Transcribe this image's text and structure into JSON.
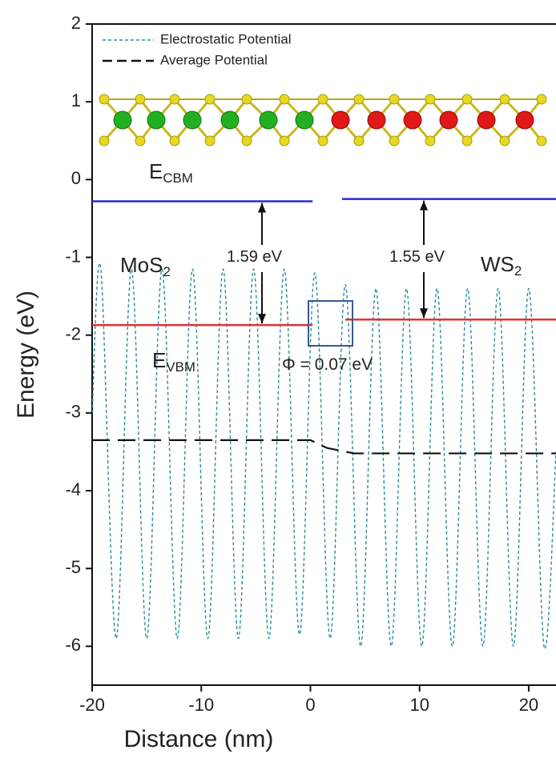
{
  "chart_data": {
    "type": "line",
    "xlabel": "Distance (nm)",
    "ylabel": "Energy (eV)",
    "xlim": [
      -20,
      22.5
    ],
    "ylim": [
      -6.5,
      2
    ],
    "xticks": [
      -20,
      -10,
      0,
      10,
      20
    ],
    "yticks": [
      -6,
      -5,
      -4,
      -3,
      -2,
      -1,
      0,
      1,
      2
    ],
    "legend": "upper left",
    "series": [
      {
        "name": "Electrostatic Potential",
        "color": "#2a8c9c",
        "dash": "dashed",
        "x": [
          -20,
          -19.2,
          -17.8,
          -16.4,
          -15.0,
          -13.6,
          -12.2,
          -10.8,
          -9.4,
          -8.0,
          -6.6,
          -5.2,
          -3.8,
          -2.4,
          -1.0,
          0.4,
          1.8,
          3.2,
          4.6,
          6.0,
          7.4,
          8.8,
          10.2,
          11.6,
          13.0,
          14.4,
          15.8,
          17.2,
          18.6,
          20.0,
          21.4,
          22.5
        ],
        "values": [
          -3.0,
          -1.15,
          -5.9,
          -1.15,
          -5.9,
          -1.15,
          -5.9,
          -1.15,
          -5.9,
          -1.15,
          -5.9,
          -1.15,
          -5.9,
          -1.15,
          -5.85,
          -1.2,
          -5.9,
          -1.35,
          -6.0,
          -1.4,
          -6.0,
          -1.4,
          -6.0,
          -1.4,
          -6.0,
          -1.4,
          -6.0,
          -1.4,
          -6.0,
          -1.4,
          -6.0,
          -3.5
        ]
      },
      {
        "name": "Average Potential",
        "color": "#111111",
        "dash": "long-dashed",
        "x": [
          -20,
          0,
          1.5,
          4,
          22.5
        ],
        "values": [
          -3.35,
          -3.35,
          -3.45,
          -3.52,
          -3.52
        ]
      }
    ],
    "bands": [
      {
        "x": [
          -20,
          0.2
        ],
        "y": -0.28,
        "color": "#2b2bd0"
      },
      {
        "x": [
          2.9,
          22.5
        ],
        "y": -0.25,
        "color": "#2b2bd0"
      },
      {
        "x": [
          -20,
          0.2
        ],
        "y": -1.87,
        "color": "#e53030"
      },
      {
        "x": [
          3.2,
          22.5
        ],
        "y": -1.8,
        "color": "#e53030"
      }
    ],
    "annotations": [
      {
        "text": "E",
        "sub": "CBM"
      },
      {
        "text": "E",
        "sub": "VBM"
      },
      {
        "text": "MoS",
        "sub": "2"
      },
      {
        "text": "WS",
        "sub": "2"
      },
      {
        "text": "1.59 eV"
      },
      {
        "text": "1.55 eV"
      },
      {
        "text": "Φ = 0.07 eV"
      }
    ]
  }
}
